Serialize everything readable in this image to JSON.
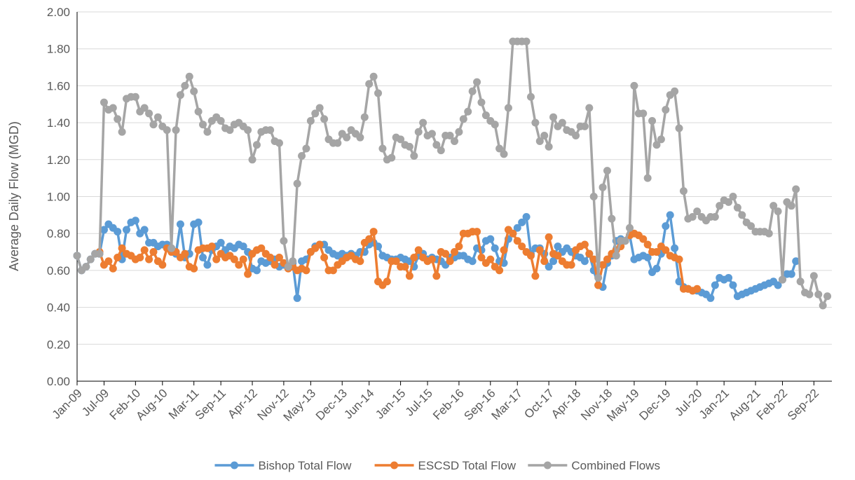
{
  "chart_data": {
    "type": "line",
    "y_label": "Average Daily Flow (MGD)",
    "x": [
      "2009-01",
      "2009-02",
      "2009-03",
      "2009-04",
      "2009-05",
      "2009-06",
      "2009-07",
      "2009-08",
      "2009-09",
      "2009-10",
      "2009-11",
      "2009-12",
      "2010-01",
      "2010-02",
      "2010-03",
      "2010-04",
      "2010-05",
      "2010-06",
      "2010-07",
      "2010-08",
      "2010-09",
      "2010-10",
      "2010-11",
      "2010-12",
      "2011-01",
      "2011-02",
      "2011-03",
      "2011-04",
      "2011-05",
      "2011-06",
      "2011-07",
      "2011-08",
      "2011-09",
      "2011-10",
      "2011-11",
      "2011-12",
      "2012-01",
      "2012-02",
      "2012-03",
      "2012-04",
      "2012-05",
      "2012-06",
      "2012-07",
      "2012-08",
      "2012-09",
      "2012-10",
      "2012-11",
      "2012-12",
      "2013-01",
      "2013-02",
      "2013-03",
      "2013-04",
      "2013-05",
      "2013-06",
      "2013-07",
      "2013-08",
      "2013-09",
      "2013-10",
      "2013-11",
      "2013-12",
      "2014-01",
      "2014-02",
      "2014-03",
      "2014-04",
      "2014-05",
      "2014-06",
      "2014-07",
      "2014-08",
      "2014-09",
      "2014-10",
      "2014-11",
      "2014-12",
      "2015-01",
      "2015-02",
      "2015-03",
      "2015-04",
      "2015-05",
      "2015-06",
      "2015-07",
      "2015-08",
      "2015-09",
      "2015-10",
      "2015-11",
      "2015-12",
      "2016-01",
      "2016-02",
      "2016-03",
      "2016-04",
      "2016-05",
      "2016-06",
      "2016-07",
      "2016-08",
      "2016-09",
      "2016-10",
      "2016-11",
      "2016-12",
      "2017-01",
      "2017-02",
      "2017-03",
      "2017-04",
      "2017-05",
      "2017-06",
      "2017-07",
      "2017-08",
      "2017-09",
      "2017-10",
      "2017-11",
      "2017-12",
      "2018-01",
      "2018-02",
      "2018-03",
      "2018-04",
      "2018-05",
      "2018-06",
      "2018-07",
      "2018-08",
      "2018-09",
      "2018-10",
      "2018-11",
      "2018-12",
      "2019-01",
      "2019-02",
      "2019-03",
      "2019-04",
      "2019-05",
      "2019-06",
      "2019-07",
      "2019-08",
      "2019-09",
      "2019-10",
      "2019-11",
      "2019-12",
      "2020-01",
      "2020-02",
      "2020-03",
      "2020-04",
      "2020-05",
      "2020-06",
      "2020-07",
      "2020-08",
      "2020-09",
      "2020-10",
      "2020-11",
      "2020-12",
      "2021-01",
      "2021-02",
      "2021-03",
      "2021-04",
      "2021-05",
      "2021-06",
      "2021-07",
      "2021-08",
      "2021-09",
      "2021-10",
      "2021-11",
      "2021-12",
      "2022-01",
      "2022-02",
      "2022-03",
      "2022-04",
      "2022-05",
      "2022-06",
      "2022-07",
      "2022-08",
      "2022-09",
      "2022-10",
      "2022-11",
      "2022-12"
    ],
    "xlim": [
      "2009-01",
      "2023-01"
    ],
    "xticks": [
      {
        "value": "2009-01",
        "label": "Jan-09"
      },
      {
        "value": "2009-07",
        "label": "Jul-09"
      },
      {
        "value": "2010-02",
        "label": "Feb-10"
      },
      {
        "value": "2010-08",
        "label": "Aug-10"
      },
      {
        "value": "2011-03",
        "label": "Mar-11"
      },
      {
        "value": "2011-09",
        "label": "Sep-11"
      },
      {
        "value": "2012-04",
        "label": "Apr-12"
      },
      {
        "value": "2012-11",
        "label": "Nov-12"
      },
      {
        "value": "2013-05",
        "label": "May-13"
      },
      {
        "value": "2013-12",
        "label": "Dec-13"
      },
      {
        "value": "2014-06",
        "label": "Jun-14"
      },
      {
        "value": "2015-01",
        "label": "Jan-15"
      },
      {
        "value": "2015-07",
        "label": "Jul-15"
      },
      {
        "value": "2016-02",
        "label": "Feb-16"
      },
      {
        "value": "2016-09",
        "label": "Sep-16"
      },
      {
        "value": "2017-03",
        "label": "Mar-17"
      },
      {
        "value": "2017-10",
        "label": "Oct-17"
      },
      {
        "value": "2018-04",
        "label": "Apr-18"
      },
      {
        "value": "2018-11",
        "label": "Nov-18"
      },
      {
        "value": "2019-05",
        "label": "May-19"
      },
      {
        "value": "2019-12",
        "label": "Dec-19"
      },
      {
        "value": "2020-07",
        "label": "Jul-20"
      },
      {
        "value": "2021-01",
        "label": "Jan-21"
      },
      {
        "value": "2021-08",
        "label": "Aug-21"
      },
      {
        "value": "2022-02",
        "label": "Feb-22"
      },
      {
        "value": "2022-09",
        "label": "Sep-22"
      }
    ],
    "ylim": [
      0,
      2
    ],
    "yticks": [
      {
        "value": 0,
        "label": "0.00"
      },
      {
        "value": 0.2,
        "label": "0.20"
      },
      {
        "value": 0.4,
        "label": "0.40"
      },
      {
        "value": 0.6,
        "label": "0.60"
      },
      {
        "value": 0.8,
        "label": "0.80"
      },
      {
        "value": 1,
        "label": "1.00"
      },
      {
        "value": 1.2,
        "label": "1.20"
      },
      {
        "value": 1.4,
        "label": "1.40"
      },
      {
        "value": 1.6,
        "label": "1.60"
      },
      {
        "value": 1.8,
        "label": "1.80"
      },
      {
        "value": 2,
        "label": "2.00"
      }
    ],
    "grid": true,
    "legend": "bottom",
    "series": [
      {
        "name": "Bishop Total Flow",
        "color": "#5b9bd5",
        "values": [
          0.68,
          0.6,
          0.62,
          0.66,
          0.69,
          0.69,
          0.82,
          0.85,
          0.83,
          0.81,
          0.66,
          0.82,
          0.86,
          0.87,
          0.8,
          0.82,
          0.75,
          0.75,
          0.73,
          0.74,
          0.74,
          0.72,
          0.69,
          0.85,
          0.67,
          0.69,
          0.85,
          0.86,
          0.67,
          0.63,
          0.71,
          0.73,
          0.75,
          0.71,
          0.73,
          0.72,
          0.74,
          0.73,
          0.7,
          0.61,
          0.6,
          0.65,
          0.64,
          0.65,
          0.66,
          0.62,
          0.63,
          0.62,
          0.64,
          0.45,
          0.65,
          0.66,
          0.7,
          0.73,
          0.74,
          0.74,
          0.71,
          0.69,
          0.68,
          0.69,
          0.68,
          0.69,
          0.68,
          0.7,
          0.7,
          0.74,
          0.75,
          0.73,
          0.68,
          0.67,
          0.66,
          0.66,
          0.67,
          0.66,
          0.65,
          0.62,
          0.68,
          0.69,
          0.66,
          0.67,
          0.66,
          0.65,
          0.63,
          0.67,
          0.67,
          0.68,
          0.68,
          0.66,
          0.65,
          0.72,
          0.71,
          0.76,
          0.77,
          0.72,
          0.65,
          0.64,
          0.77,
          0.8,
          0.83,
          0.86,
          0.89,
          0.69,
          0.72,
          0.72,
          0.69,
          0.62,
          0.65,
          0.73,
          0.7,
          0.72,
          0.7,
          0.68,
          0.67,
          0.65,
          0.69,
          0.6,
          0.52,
          0.51,
          0.64,
          0.68,
          0.76,
          0.77,
          0.76,
          0.79,
          0.66,
          0.67,
          0.68,
          0.67,
          0.59,
          0.61,
          0.69,
          0.84,
          0.9,
          0.72,
          0.54,
          0.51,
          0.5,
          0.49,
          0.49,
          0.48,
          0.47,
          0.45,
          0.52,
          0.56,
          0.55,
          0.56,
          0.52,
          0.46,
          0.47,
          0.48,
          0.49,
          0.5,
          0.51,
          0.52,
          0.53,
          0.54,
          0.52,
          0.55,
          0.58,
          0.58,
          0.65,
          null,
          null,
          null,
          null,
          null,
          null,
          null
        ]
      },
      {
        "name": "ESCSD Total Flow",
        "color": "#ed7d31",
        "values": [
          null,
          null,
          null,
          null,
          null,
          0.7,
          0.63,
          0.65,
          0.61,
          0.67,
          0.72,
          0.69,
          0.68,
          0.66,
          0.67,
          0.71,
          0.66,
          0.7,
          0.65,
          0.63,
          0.72,
          0.7,
          0.7,
          0.67,
          0.69,
          0.62,
          0.61,
          0.71,
          0.72,
          0.72,
          0.73,
          0.66,
          0.69,
          0.67,
          0.68,
          0.66,
          0.63,
          0.66,
          0.58,
          0.69,
          0.71,
          0.72,
          0.69,
          0.67,
          0.63,
          0.67,
          0.64,
          0.61,
          0.62,
          0.6,
          0.61,
          0.6,
          0.7,
          0.72,
          0.74,
          0.67,
          0.6,
          0.6,
          0.63,
          0.65,
          0.67,
          0.68,
          0.66,
          0.65,
          0.75,
          0.77,
          0.81,
          0.54,
          0.52,
          0.54,
          0.65,
          0.65,
          0.62,
          0.62,
          0.57,
          0.67,
          0.71,
          0.67,
          0.65,
          0.66,
          0.57,
          0.7,
          0.69,
          0.65,
          0.7,
          0.73,
          0.8,
          0.8,
          0.81,
          0.81,
          0.67,
          0.64,
          0.66,
          0.62,
          0.6,
          0.71,
          0.82,
          0.8,
          0.76,
          0.73,
          0.7,
          0.68,
          0.57,
          0.71,
          0.65,
          0.78,
          0.69,
          0.68,
          0.65,
          0.63,
          0.63,
          0.71,
          0.73,
          0.74,
          0.69,
          0.66,
          0.52,
          0.63,
          0.66,
          0.69,
          0.71,
          0.73,
          0.76,
          0.79,
          0.8,
          0.79,
          0.77,
          0.74,
          0.7,
          0.7,
          0.73,
          0.71,
          0.68,
          0.67,
          0.66,
          0.5,
          0.5,
          0.49,
          0.5,
          null,
          null,
          null,
          null,
          null,
          null,
          null,
          null,
          null,
          null,
          null,
          null,
          null,
          null,
          null,
          null,
          null,
          null,
          null,
          null,
          null,
          null,
          null,
          null,
          null,
          null,
          null,
          null,
          null
        ]
      },
      {
        "name": "Combined Flows",
        "color": "#a5a5a5",
        "values": [
          0.68,
          0.6,
          0.62,
          0.66,
          0.69,
          0.69,
          1.51,
          1.47,
          1.48,
          1.42,
          1.35,
          1.53,
          1.54,
          1.54,
          1.46,
          1.48,
          1.45,
          1.39,
          1.43,
          1.38,
          1.36,
          0.72,
          1.36,
          1.55,
          1.6,
          1.65,
          1.57,
          1.46,
          1.39,
          1.35,
          1.41,
          1.43,
          1.41,
          1.37,
          1.36,
          1.39,
          1.4,
          1.38,
          1.36,
          1.2,
          1.28,
          1.35,
          1.36,
          1.36,
          1.3,
          1.29,
          0.76,
          0.62,
          0.65,
          1.07,
          1.22,
          1.26,
          1.41,
          1.45,
          1.48,
          1.42,
          1.31,
          1.29,
          1.29,
          1.34,
          1.32,
          1.36,
          1.34,
          1.32,
          1.43,
          1.61,
          1.65,
          1.56,
          1.26,
          1.2,
          1.21,
          1.32,
          1.31,
          1.28,
          1.27,
          1.22,
          1.35,
          1.4,
          1.33,
          1.34,
          1.28,
          1.25,
          1.33,
          1.33,
          1.3,
          1.35,
          1.42,
          1.46,
          1.57,
          1.62,
          1.51,
          1.44,
          1.41,
          1.39,
          1.26,
          1.23,
          1.48,
          1.84,
          1.84,
          1.84,
          1.84,
          1.54,
          1.4,
          1.3,
          1.33,
          1.27,
          1.43,
          1.38,
          1.4,
          1.36,
          1.35,
          1.33,
          1.38,
          1.38,
          1.48,
          1.0,
          0.56,
          1.05,
          1.14,
          0.88,
          0.68,
          0.76,
          0.76,
          0.83,
          1.6,
          1.45,
          1.45,
          1.1,
          1.41,
          1.28,
          1.31,
          1.47,
          1.55,
          1.57,
          1.37,
          1.03,
          0.88,
          0.89,
          0.92,
          0.89,
          0.87,
          0.89,
          0.89,
          0.95,
          0.98,
          0.97,
          1.0,
          0.94,
          0.9,
          0.86,
          0.84,
          0.81,
          0.81,
          0.81,
          0.8,
          0.95,
          0.92,
          0.55,
          0.97,
          0.95,
          1.04,
          0.54,
          0.48,
          0.47,
          0.57,
          0.47,
          0.41,
          0.46
        ]
      }
    ]
  }
}
